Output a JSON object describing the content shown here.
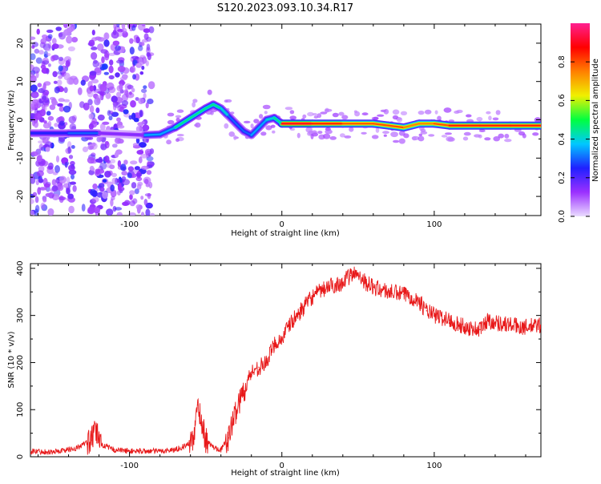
{
  "title": "S120.2023.093.10.34.R17",
  "colorbar": {
    "label": "Normalized spectral amplitude",
    "ticks": [
      "0.0",
      "0.2",
      "0.4",
      "0.6",
      "0.8"
    ],
    "tick_values": [
      0.0,
      0.2,
      0.4,
      0.6,
      0.8
    ],
    "range": [
      0,
      1
    ],
    "colors": [
      "#eadcff",
      "#9b30ff",
      "#2020ff",
      "#00c8ff",
      "#00ff40",
      "#f0f000",
      "#ff8000",
      "#ff0000",
      "#ff2090"
    ]
  },
  "chart_data": [
    {
      "type": "heatmap",
      "xlabel": "Height of straight line (km)",
      "ylabel": "Frequency (Hz)",
      "xlim": [
        -165,
        170
      ],
      "ylim": [
        -25,
        25
      ],
      "x_ticks": [
        -100,
        0,
        100
      ],
      "x_tick_labels": [
        "-100",
        "0",
        "100"
      ],
      "y_ticks": [
        -20,
        -10,
        0,
        10,
        20
      ],
      "y_tick_labels": [
        "-20",
        "-10",
        "0",
        "10",
        "20"
      ],
      "ridge": {
        "x": [
          -165,
          -140,
          -120,
          -100,
          -90,
          -80,
          -70,
          -60,
          -50,
          -45,
          -40,
          -35,
          -30,
          -25,
          -20,
          -15,
          -10,
          -5,
          0,
          20,
          40,
          60,
          70,
          80,
          90,
          100,
          110,
          130,
          150,
          170
        ],
        "y": [
          -3.5,
          -3.5,
          -3.5,
          -3.8,
          -4,
          -3.8,
          -2,
          0.5,
          3,
          4,
          3,
          1,
          -1,
          -3,
          -4,
          -2,
          0,
          0.5,
          -1,
          -1,
          -1,
          -1,
          -1.5,
          -2,
          -1,
          -1,
          -1.5,
          -1.5,
          -1.5,
          -1.5
        ],
        "amplitude": [
          0.25,
          0.35,
          0.3,
          0.15,
          0.4,
          0.35,
          0.45,
          0.5,
          0.45,
          0.5,
          0.45,
          0.4,
          0.3,
          0.3,
          0.35,
          0.35,
          0.4,
          0.45,
          0.9,
          0.9,
          0.85,
          0.8,
          0.85,
          0.8,
          0.75,
          0.8,
          0.85,
          0.9,
          0.85,
          0.85
        ]
      },
      "noise_region_x": [
        -165,
        -85
      ]
    },
    {
      "type": "line",
      "xlabel": "Height of straight line (km)",
      "ylabel": "SNR (10 * v/v)",
      "xlim": [
        -165,
        170
      ],
      "ylim": [
        0,
        410
      ],
      "x_ticks": [
        -100,
        0,
        100
      ],
      "x_tick_labels": [
        "-100",
        "0",
        "100"
      ],
      "y_ticks": [
        0,
        100,
        200,
        300,
        400
      ],
      "y_tick_labels": [
        "0",
        "100",
        "200",
        "300",
        "400"
      ],
      "series": [
        {
          "color": "#e8191a",
          "x": [
            -165,
            -150,
            -135,
            -125,
            -122,
            -118,
            -110,
            -100,
            -90,
            -80,
            -70,
            -62,
            -58,
            -55,
            -50,
            -45,
            -40,
            -35,
            -30,
            -25,
            -20,
            -15,
            -10,
            -5,
            0,
            5,
            10,
            15,
            20,
            30,
            40,
            45,
            50,
            55,
            60,
            70,
            80,
            85,
            90,
            95,
            100,
            110,
            120,
            130,
            135,
            140,
            150,
            160,
            170
          ],
          "y": [
            12,
            10,
            18,
            35,
            55,
            25,
            15,
            12,
            12,
            12,
            15,
            25,
            40,
            110,
            35,
            20,
            15,
            40,
            100,
            140,
            180,
            190,
            200,
            240,
            250,
            280,
            300,
            320,
            340,
            360,
            370,
            385,
            390,
            370,
            360,
            350,
            345,
            340,
            330,
            310,
            300,
            290,
            275,
            270,
            290,
            285,
            280,
            275,
            280
          ]
        }
      ]
    }
  ]
}
